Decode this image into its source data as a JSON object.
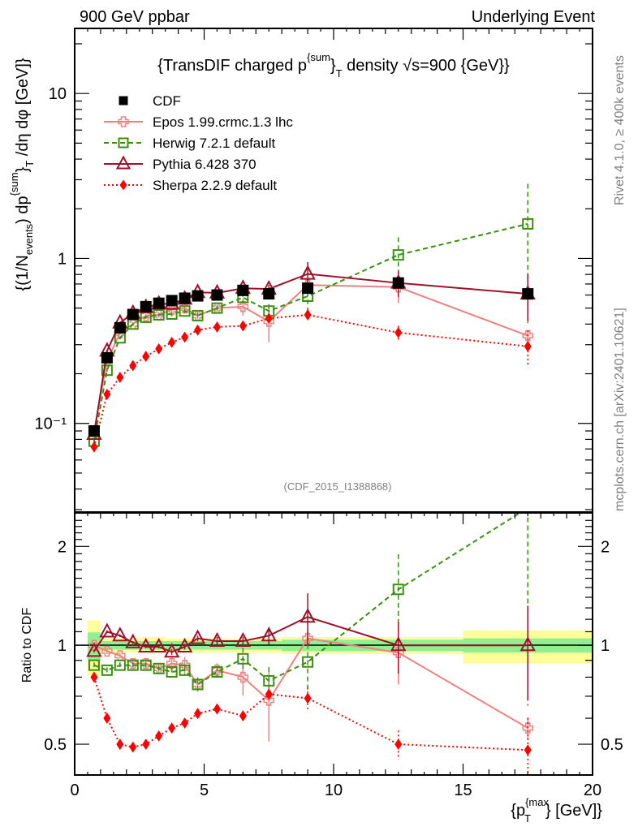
{
  "header": {
    "left": "900 GeV ppbar",
    "right": "Underlying Event"
  },
  "side_text": {
    "top": "Rivet 4.1.0, ≥ 400k events",
    "bottom": "mcplots.cern.ch [arXiv:2401.10621]"
  },
  "chart_data": [
    {
      "type": "line",
      "panel": "main",
      "title": "{TransDIF charged p^{sum}_T density √s=900 {GeV}}",
      "title_parts": {
        "pre": "{TransDIF charged p",
        "sup": "{sum",
        "mid": "}",
        "sub": "T",
        "post": " density √s=900 {GeV}}"
      },
      "ylabel": "{(1/N_events) dp^{sum}_T /dη dφ [GeV]}",
      "ylabel_parts": {
        "a": "{(1/N",
        "a_sub": "events",
        "b": ") dp",
        "b_sup": "{sum",
        "c": "}",
        "c_sub": "T",
        "d": " /dη  dφ [GeV]}"
      },
      "xlabel": "",
      "xscale": "linear",
      "yscale": "log",
      "xlim": [
        0,
        20
      ],
      "ylim": [
        0.029,
        24.8
      ],
      "ytick_labels": [
        {
          "v": 0.1,
          "t": "10⁻¹"
        },
        {
          "v": 1,
          "t": "1"
        },
        {
          "v": 10,
          "t": "10"
        }
      ],
      "watermark": "(CDF_2015_I1388868)",
      "legend_position": "top-left",
      "x": [
        0.75,
        1.25,
        1.75,
        2.25,
        2.75,
        3.25,
        3.75,
        4.25,
        4.75,
        5.5,
        6.5,
        7.5,
        9,
        12.5,
        17.5
      ],
      "series": [
        {
          "name": "CDF",
          "color": "#000000",
          "marker": "square-filled",
          "line": "none",
          "values": [
            0.09,
            0.25,
            0.38,
            0.457,
            0.51,
            0.535,
            0.555,
            0.574,
            0.593,
            0.6,
            0.64,
            0.61,
            0.66,
            0.71,
            0.61
          ]
        },
        {
          "name": "Epos 1.99.crmc.1.3 lhc",
          "color": "#f08080",
          "marker": "cross-open",
          "line": "solid",
          "values": [
            0.09,
            0.24,
            0.353,
            0.4,
            0.45,
            0.455,
            0.49,
            0.5,
            0.45,
            0.5,
            0.51,
            0.415,
            0.69,
            0.67,
            0.34
          ],
          "rel_err": [
            0.02,
            0.02,
            0.02,
            0.03,
            0.03,
            0.04,
            0.05,
            0.06,
            0.05,
            0.05,
            0.12,
            0.25,
            0.06,
            0.2,
            0.08
          ]
        },
        {
          "name": "Herwig 7.2.1 default",
          "color": "#3a8f10",
          "marker": "square-open",
          "line": "dashed",
          "values": [
            0.078,
            0.21,
            0.33,
            0.4,
            0.44,
            0.455,
            0.46,
            0.48,
            0.45,
            0.5,
            0.58,
            0.48,
            0.59,
            1.05,
            1.62
          ],
          "rel_err": [
            0.02,
            0.02,
            0.02,
            0.02,
            0.02,
            0.02,
            0.03,
            0.03,
            0.05,
            0.04,
            0.08,
            0.1,
            0.2,
            0.28,
            0.75
          ]
        },
        {
          "name": "Pythia 6.428 370",
          "color": "#a0102a",
          "marker": "triangle-open",
          "line": "solid",
          "values": [
            0.086,
            0.275,
            0.407,
            0.466,
            0.505,
            0.53,
            0.53,
            0.568,
            0.623,
            0.618,
            0.659,
            0.653,
            0.805,
            0.71,
            0.61
          ],
          "rel_err": [
            0.01,
            0.01,
            0.01,
            0.01,
            0.01,
            0.01,
            0.02,
            0.02,
            0.02,
            0.03,
            0.03,
            0.06,
            0.18,
            0.18,
            0.32
          ]
        },
        {
          "name": "Sherpa 2.2.9 default",
          "color": "#ff0000",
          "marker": "diamond-filled",
          "line": "dotted",
          "values": [
            0.072,
            0.15,
            0.19,
            0.224,
            0.255,
            0.283,
            0.31,
            0.333,
            0.368,
            0.384,
            0.39,
            0.433,
            0.455,
            0.355,
            0.293
          ],
          "rel_err": [
            0.01,
            0.01,
            0.01,
            0.01,
            0.01,
            0.01,
            0.01,
            0.02,
            0.02,
            0.02,
            0.03,
            0.04,
            0.08,
            0.1,
            0.25
          ]
        }
      ]
    },
    {
      "type": "line",
      "panel": "ratio",
      "ylabel": "Ratio to CDF",
      "xlabel": "{p_T^{max}} [GeV]}",
      "xlabel_parts": {
        "a": "{p",
        "sup": "{max",
        "sub": "T",
        "b": "} [GeV]}"
      },
      "xscale": "linear",
      "yscale": "log",
      "xlim": [
        0,
        20
      ],
      "ylim": [
        0.403,
        2.53
      ],
      "xtick_labels": [
        "0",
        "5",
        "10",
        "15",
        "20"
      ],
      "ytick_labels": [
        {
          "v": 0.5,
          "t": "0.5"
        },
        {
          "v": 1,
          "t": "1"
        },
        {
          "v": 2,
          "t": "2"
        }
      ],
      "bin_edges": [
        0.5,
        1,
        1.5,
        2,
        2.5,
        3,
        3.5,
        4,
        4.5,
        5,
        6,
        7,
        8,
        10,
        15,
        20
      ],
      "band_outer": {
        "color": "#ffff99",
        "lo": [
          0.81,
          0.95,
          0.95,
          0.95,
          0.95,
          0.95,
          0.95,
          0.95,
          0.95,
          0.95,
          0.95,
          0.95,
          0.94,
          0.94,
          0.88,
          0.69
        ],
        "hi": [
          1.19,
          1.05,
          1.05,
          1.05,
          1.06,
          1.06,
          1.05,
          1.05,
          1.05,
          1.05,
          1.05,
          1.05,
          1.06,
          1.06,
          1.11,
          1.31
        ]
      },
      "band_inner": {
        "color": "#90f090",
        "lo": [
          0.9,
          0.97,
          0.97,
          0.97,
          0.97,
          0.97,
          0.97,
          0.97,
          0.97,
          0.97,
          0.97,
          0.97,
          0.96,
          0.96,
          0.95,
          0.84
        ],
        "hi": [
          1.095,
          1.03,
          1.03,
          1.03,
          1.03,
          1.03,
          1.03,
          1.03,
          1.03,
          1.03,
          1.03,
          1.03,
          1.04,
          1.04,
          1.05,
          1.15
        ]
      },
      "x": [
        0.75,
        1.25,
        1.75,
        2.25,
        2.75,
        3.25,
        3.75,
        4.25,
        4.75,
        5.5,
        6.5,
        7.5,
        9,
        12.5,
        17.5
      ],
      "series": [
        {
          "name": "Epos 1.99.crmc.1.3 lhc",
          "values": [
            1.0,
            0.96,
            0.93,
            0.88,
            0.88,
            0.85,
            0.88,
            0.87,
            0.76,
            0.84,
            0.8,
            0.68,
            1.05,
            0.95,
            0.56
          ]
        },
        {
          "name": "Herwig 7.2.1 default",
          "values": [
            0.87,
            0.84,
            0.87,
            0.87,
            0.87,
            0.85,
            0.83,
            0.84,
            0.76,
            0.83,
            0.91,
            0.78,
            0.89,
            1.48,
            2.62
          ]
        },
        {
          "name": "Pythia 6.428 370",
          "values": [
            0.96,
            1.1,
            1.07,
            1.02,
            0.99,
            0.99,
            0.955,
            0.99,
            1.05,
            1.03,
            1.03,
            1.07,
            1.22,
            1.0,
            1.0
          ]
        },
        {
          "name": "Sherpa 2.2.9 default",
          "values": [
            0.8,
            0.6,
            0.5,
            0.49,
            0.5,
            0.53,
            0.56,
            0.58,
            0.62,
            0.64,
            0.61,
            0.71,
            0.69,
            0.5,
            0.48
          ]
        }
      ]
    }
  ]
}
